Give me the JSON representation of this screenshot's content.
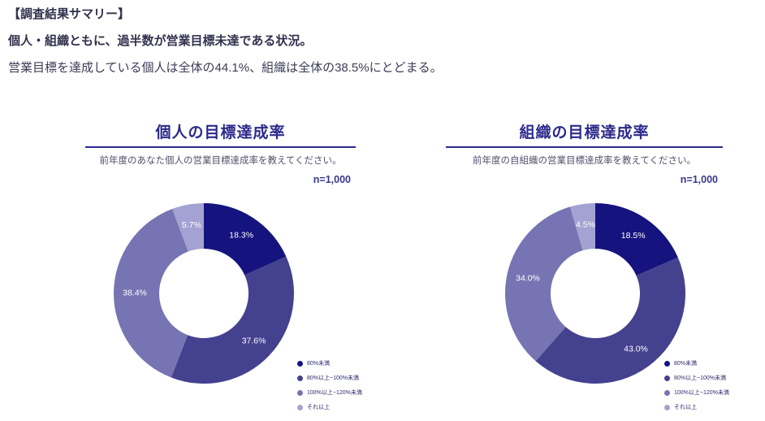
{
  "header": {
    "line1": "【調査結果サマリー】",
    "line2": "個人・組織ともに、過半数が営業目標未達である状況。",
    "line3": "営業目標を達成している個人は全体の44.1%、組織は全体の38.5%にとどまる。"
  },
  "colors": {
    "accent": "#2c2a8c",
    "slices": [
      "#15137e",
      "#44418f",
      "#7674b3",
      "#a3a2d2"
    ],
    "slice_label": "#ffffff",
    "legend_text": "#2b2b70"
  },
  "chart_data": [
    {
      "type": "pie",
      "style": "donut",
      "title": "個人の目標達成率",
      "subtitle": "前年度のあなた個人の営業目標達成率を教えてください。",
      "sample_label": "n=1,000",
      "categories": [
        "80%未満",
        "80%以上~100%未満",
        "100%以上~120%未満",
        "それ以上"
      ],
      "values": [
        18.3,
        37.6,
        38.4,
        5.7
      ],
      "labels": [
        "18.3%",
        "37.6%",
        "38.4%",
        "5.7%"
      ],
      "start_angle_deg": 0,
      "direction": "clockwise",
      "legend_position": "bottom-right"
    },
    {
      "type": "pie",
      "style": "donut",
      "title": "組織の目標達成率",
      "subtitle": "前年度の自組織の営業目標達成率を教えてください。",
      "sample_label": "n=1,000",
      "categories": [
        "80%未満",
        "80%以上~100%未満",
        "100%以上~120%未満",
        "それ以上"
      ],
      "values": [
        18.5,
        43.0,
        34.0,
        4.5
      ],
      "labels": [
        "18.5%",
        "43.0%",
        "34.0%",
        "4.5%"
      ],
      "start_angle_deg": 0,
      "direction": "clockwise",
      "legend_position": "bottom-right"
    }
  ]
}
